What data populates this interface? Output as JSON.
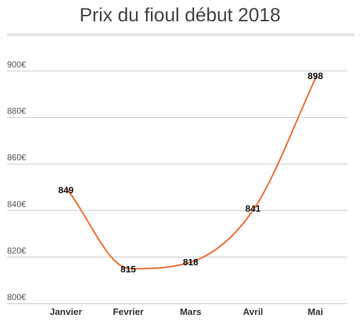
{
  "chart_data": {
    "type": "line",
    "title": "Prix du fioul début 2018",
    "categories": [
      "Janvier",
      "Fevrier",
      "Mars",
      "Avril",
      "Mai"
    ],
    "series": [
      {
        "values": [
          849,
          815,
          818,
          841,
          898
        ]
      }
    ],
    "data_labels": [
      "849",
      "815",
      "818",
      "841",
      "898"
    ],
    "y_ticks": [
      "800€",
      "820€",
      "840€",
      "860€",
      "880€",
      "900€"
    ],
    "y_tick_values": [
      800,
      820,
      840,
      860,
      880,
      900
    ],
    "ylim": [
      800,
      900
    ],
    "line_color": "#f0703a",
    "grid": true,
    "smooth": true
  }
}
